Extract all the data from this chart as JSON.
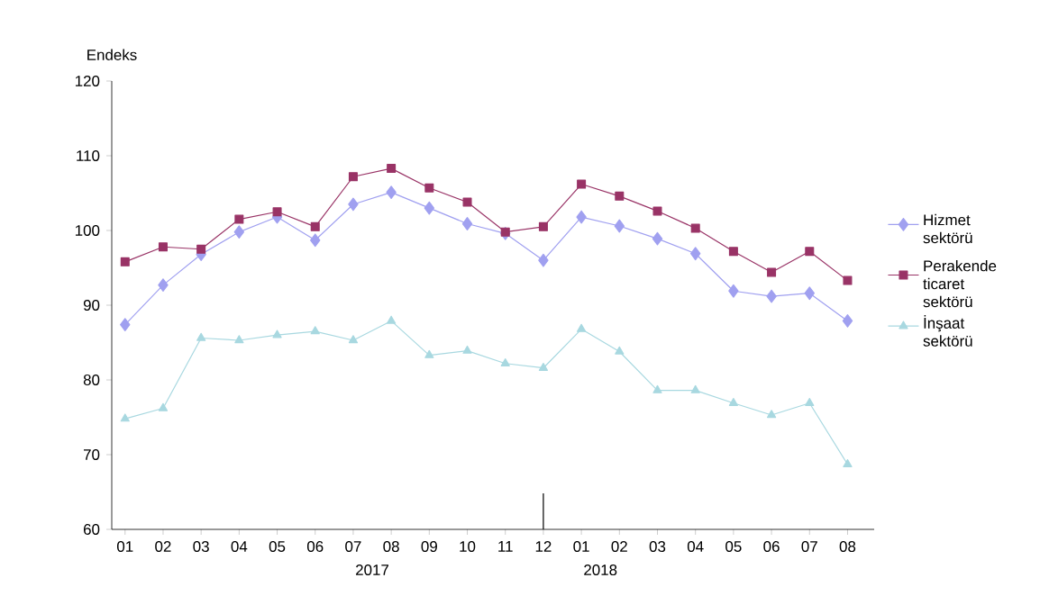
{
  "chart_data": {
    "type": "line",
    "ylabel": "Endeks",
    "categories": [
      "01",
      "02",
      "03",
      "04",
      "05",
      "06",
      "07",
      "08",
      "09",
      "10",
      "11",
      "12",
      "01",
      "02",
      "03",
      "04",
      "05",
      "06",
      "07",
      "08"
    ],
    "series": [
      {
        "name": "Hizmet sektörü",
        "color": "#a0a0f0",
        "marker": "diamond",
        "values": [
          87.4,
          92.7,
          96.8,
          99.8,
          101.8,
          98.7,
          103.5,
          105.1,
          103.0,
          100.9,
          99.6,
          96.0,
          101.8,
          100.6,
          98.9,
          96.9,
          91.9,
          91.2,
          91.6,
          87.9
        ]
      },
      {
        "name": "Perakende ticaret sektörü",
        "color": "#993366",
        "marker": "square",
        "values": [
          95.8,
          97.8,
          97.5,
          101.5,
          102.5,
          100.5,
          107.2,
          108.3,
          105.7,
          103.8,
          99.8,
          100.5,
          106.2,
          104.6,
          102.6,
          100.3,
          97.2,
          94.4,
          97.2,
          93.3
        ]
      },
      {
        "name": "İnşaat sektörü",
        "color": "#a8d8e0",
        "marker": "triangle",
        "values": [
          74.8,
          76.2,
          85.6,
          85.3,
          86.0,
          86.5,
          85.3,
          87.9,
          83.3,
          83.9,
          82.2,
          81.6,
          86.8,
          83.8,
          78.6,
          78.6,
          76.9,
          75.3,
          76.9,
          68.7
        ]
      }
    ],
    "ylim": [
      60,
      120
    ],
    "yticks": [
      60,
      70,
      80,
      90,
      100,
      110,
      120
    ],
    "annotations": [
      "2017",
      "2018"
    ],
    "legend": "right",
    "grid": false
  }
}
